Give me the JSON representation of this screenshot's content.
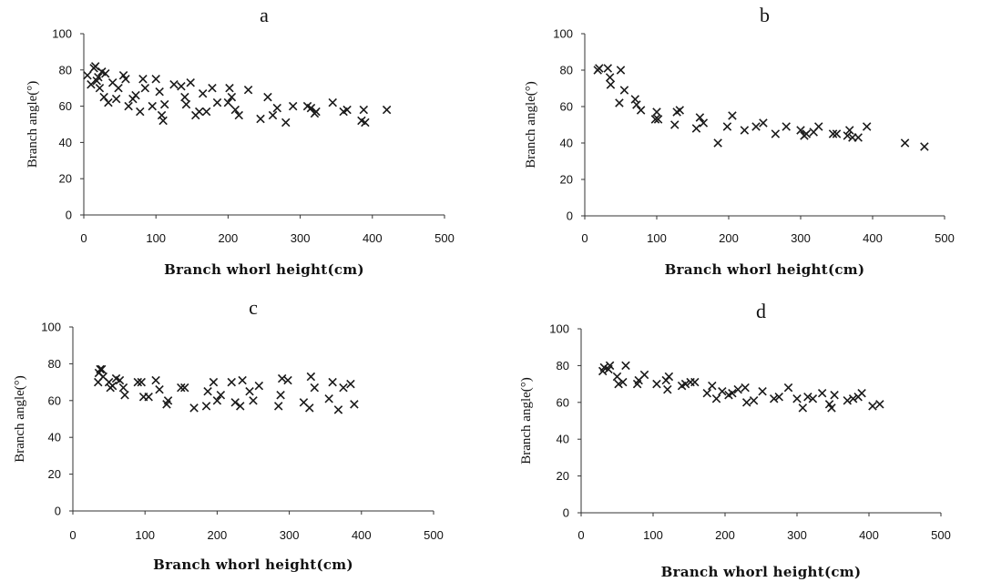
{
  "chart_data": [
    {
      "type": "scatter",
      "title": "a",
      "xlabel": "Branch whorl height(cm)",
      "ylabel": "Branch angle(°)",
      "xlim": [
        0,
        500
      ],
      "ylim": [
        0,
        100
      ],
      "x_ticks": [
        "0",
        "100",
        "200",
        "300",
        "400",
        "500"
      ],
      "y_ticks": [
        "0",
        "20",
        "40",
        "60",
        "80",
        "100"
      ],
      "marker": "x",
      "grid": false,
      "points": [
        [
          5,
          77
        ],
        [
          10,
          72
        ],
        [
          14,
          81
        ],
        [
          16,
          82
        ],
        [
          18,
          74
        ],
        [
          20,
          76
        ],
        [
          22,
          70
        ],
        [
          25,
          79
        ],
        [
          28,
          65
        ],
        [
          30,
          78
        ],
        [
          34,
          62
        ],
        [
          40,
          73
        ],
        [
          45,
          64
        ],
        [
          48,
          70
        ],
        [
          55,
          77
        ],
        [
          58,
          75
        ],
        [
          62,
          60
        ],
        [
          68,
          64
        ],
        [
          72,
          66
        ],
        [
          78,
          57
        ],
        [
          82,
          75
        ],
        [
          85,
          70
        ],
        [
          95,
          60
        ],
        [
          100,
          75
        ],
        [
          105,
          68
        ],
        [
          108,
          55
        ],
        [
          110,
          52
        ],
        [
          112,
          61
        ],
        [
          125,
          72
        ],
        [
          135,
          71
        ],
        [
          140,
          65
        ],
        [
          142,
          61
        ],
        [
          148,
          73
        ],
        [
          155,
          55
        ],
        [
          160,
          57
        ],
        [
          165,
          67
        ],
        [
          170,
          57
        ],
        [
          178,
          70
        ],
        [
          185,
          62
        ],
        [
          200,
          62
        ],
        [
          202,
          70
        ],
        [
          205,
          65
        ],
        [
          210,
          58
        ],
        [
          215,
          55
        ],
        [
          228,
          69
        ],
        [
          245,
          53
        ],
        [
          255,
          65
        ],
        [
          262,
          55
        ],
        [
          268,
          59
        ],
        [
          280,
          51
        ],
        [
          290,
          60
        ],
        [
          310,
          60
        ],
        [
          315,
          59
        ],
        [
          320,
          56
        ],
        [
          322,
          57
        ],
        [
          345,
          62
        ],
        [
          360,
          57
        ],
        [
          365,
          58
        ],
        [
          385,
          52
        ],
        [
          388,
          58
        ],
        [
          390,
          51
        ],
        [
          420,
          58
        ]
      ]
    },
    {
      "type": "scatter",
      "title": "b",
      "xlabel": "Branch whorl height(cm)",
      "ylabel": "Branch angle(°)",
      "xlim": [
        0,
        500
      ],
      "ylim": [
        0,
        100
      ],
      "x_ticks": [
        "0",
        "100",
        "200",
        "300",
        "400",
        "500"
      ],
      "y_ticks": [
        "0",
        "20",
        "40",
        "60",
        "80",
        "100"
      ],
      "marker": "x",
      "grid": false,
      "points": [
        [
          18,
          80
        ],
        [
          20,
          81
        ],
        [
          32,
          81
        ],
        [
          35,
          76
        ],
        [
          36,
          72
        ],
        [
          48,
          62
        ],
        [
          50,
          80
        ],
        [
          55,
          69
        ],
        [
          70,
          64
        ],
        [
          72,
          61
        ],
        [
          78,
          58
        ],
        [
          98,
          53
        ],
        [
          100,
          57
        ],
        [
          102,
          53
        ],
        [
          125,
          50
        ],
        [
          128,
          57
        ],
        [
          132,
          58
        ],
        [
          155,
          48
        ],
        [
          160,
          54
        ],
        [
          165,
          51
        ],
        [
          185,
          40
        ],
        [
          198,
          49
        ],
        [
          205,
          55
        ],
        [
          222,
          47
        ],
        [
          238,
          49
        ],
        [
          248,
          51
        ],
        [
          265,
          45
        ],
        [
          280,
          49
        ],
        [
          300,
          47
        ],
        [
          305,
          44
        ],
        [
          308,
          45
        ],
        [
          318,
          46
        ],
        [
          325,
          49
        ],
        [
          345,
          45
        ],
        [
          350,
          45
        ],
        [
          365,
          44
        ],
        [
          368,
          47
        ],
        [
          372,
          43
        ],
        [
          380,
          43
        ],
        [
          392,
          49
        ],
        [
          445,
          40
        ],
        [
          472,
          38
        ]
      ]
    },
    {
      "type": "scatter",
      "title": "c",
      "xlabel": "Branch whorl height(cm)",
      "ylabel": "Branch angle(°)",
      "xlim": [
        0,
        500
      ],
      "ylim": [
        0,
        100
      ],
      "x_ticks": [
        "0",
        "100",
        "200",
        "300",
        "400",
        "500"
      ],
      "y_ticks": [
        "0",
        "20",
        "40",
        "60",
        "80",
        "100"
      ],
      "marker": "x",
      "grid": false,
      "points": [
        [
          35,
          70
        ],
        [
          36,
          75
        ],
        [
          38,
          77
        ],
        [
          40,
          77
        ],
        [
          42,
          73
        ],
        [
          50,
          70
        ],
        [
          52,
          67
        ],
        [
          55,
          68
        ],
        [
          60,
          72
        ],
        [
          65,
          71
        ],
        [
          70,
          67
        ],
        [
          72,
          63
        ],
        [
          90,
          70
        ],
        [
          95,
          70
        ],
        [
          98,
          62
        ],
        [
          105,
          62
        ],
        [
          115,
          71
        ],
        [
          120,
          66
        ],
        [
          130,
          58
        ],
        [
          132,
          60
        ],
        [
          150,
          67
        ],
        [
          155,
          67
        ],
        [
          168,
          56
        ],
        [
          185,
          57
        ],
        [
          187,
          65
        ],
        [
          195,
          70
        ],
        [
          200,
          60
        ],
        [
          205,
          63
        ],
        [
          220,
          70
        ],
        [
          225,
          59
        ],
        [
          232,
          57
        ],
        [
          235,
          71
        ],
        [
          245,
          65
        ],
        [
          250,
          60
        ],
        [
          258,
          68
        ],
        [
          285,
          57
        ],
        [
          288,
          63
        ],
        [
          290,
          72
        ],
        [
          298,
          71
        ],
        [
          320,
          59
        ],
        [
          328,
          56
        ],
        [
          330,
          73
        ],
        [
          335,
          67
        ],
        [
          355,
          61
        ],
        [
          360,
          70
        ],
        [
          368,
          55
        ],
        [
          375,
          67
        ],
        [
          385,
          69
        ],
        [
          390,
          58
        ]
      ]
    },
    {
      "type": "scatter",
      "title": "d",
      "xlabel": "Branch whorl height(cm)",
      "ylabel": "Branch angle(°)",
      "xlim": [
        0,
        500
      ],
      "ylim": [
        0,
        100
      ],
      "x_ticks": [
        "0",
        "100",
        "200",
        "300",
        "400",
        "500"
      ],
      "y_ticks": [
        "0",
        "20",
        "40",
        "60",
        "80",
        "100"
      ],
      "marker": "x",
      "grid": false,
      "points": [
        [
          30,
          77
        ],
        [
          32,
          79
        ],
        [
          38,
          78
        ],
        [
          40,
          80
        ],
        [
          50,
          74
        ],
        [
          52,
          70
        ],
        [
          58,
          71
        ],
        [
          62,
          80
        ],
        [
          78,
          70
        ],
        [
          80,
          72
        ],
        [
          88,
          75
        ],
        [
          105,
          70
        ],
        [
          118,
          72
        ],
        [
          120,
          67
        ],
        [
          122,
          74
        ],
        [
          140,
          69
        ],
        [
          145,
          70
        ],
        [
          152,
          71
        ],
        [
          158,
          71
        ],
        [
          175,
          65
        ],
        [
          182,
          69
        ],
        [
          188,
          62
        ],
        [
          196,
          66
        ],
        [
          205,
          64
        ],
        [
          210,
          65
        ],
        [
          218,
          67
        ],
        [
          228,
          68
        ],
        [
          230,
          60
        ],
        [
          240,
          61
        ],
        [
          252,
          66
        ],
        [
          268,
          62
        ],
        [
          275,
          63
        ],
        [
          288,
          68
        ],
        [
          300,
          62
        ],
        [
          308,
          57
        ],
        [
          315,
          63
        ],
        [
          322,
          62
        ],
        [
          335,
          65
        ],
        [
          345,
          59
        ],
        [
          348,
          57
        ],
        [
          352,
          64
        ],
        [
          370,
          61
        ],
        [
          378,
          62
        ],
        [
          385,
          63
        ],
        [
          390,
          65
        ],
        [
          405,
          58
        ],
        [
          415,
          59
        ]
      ]
    }
  ]
}
